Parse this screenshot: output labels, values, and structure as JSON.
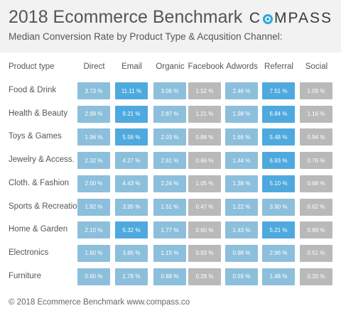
{
  "header": {
    "title": "2018 Ecommerce Benchmark",
    "subtitle": "Median Conversion Rate by Product Type & Acqusition Channel:",
    "logo_left": "C",
    "logo_right": "MPASS"
  },
  "footer": {
    "text": "© 2018 Ecommerce Benchmark www.compass.co"
  },
  "colors": {
    "dark_blue": "#4ea9de",
    "light_blue": "#8cbfdb",
    "grey": "#b9b9b9"
  },
  "chart_data": {
    "type": "heatmap",
    "title": "2018 Ecommerce Benchmark",
    "subtitle": "Median Conversion Rate by Product Type & Acqusition Channel:",
    "row_header": "Product type",
    "columns": [
      "Direct",
      "Email",
      "Organic",
      "Facebook",
      "Adwords",
      "Referral",
      "Social"
    ],
    "rows": [
      {
        "label": "Food & Drink",
        "values": [
          "3.73 %",
          "11.11 %",
          "3.06 %",
          "1.52 %",
          "2.46 %",
          "7.51 %",
          "1.09 %"
        ],
        "levels": [
          "light",
          "dark",
          "light",
          "grey",
          "light",
          "dark",
          "grey"
        ]
      },
      {
        "label": "Health & Beauty",
        "values": [
          "2.99 %",
          "9.21 %",
          "2.87 %",
          "1.21 %",
          "1.98 %",
          "6.84 %",
          "1.16 %"
        ],
        "levels": [
          "light",
          "dark",
          "light",
          "grey",
          "light",
          "dark",
          "grey"
        ]
      },
      {
        "label": "Toys & Games",
        "values": [
          "1.96 %",
          "5.56 %",
          "2.03 %",
          "0.88 %",
          "1.66 %",
          "5.48 %",
          "0.94 %"
        ],
        "levels": [
          "light",
          "dark",
          "light",
          "grey",
          "light",
          "dark",
          "grey"
        ]
      },
      {
        "label": "Jewelry & Access.",
        "values": [
          "2.32 %",
          "4.27 %",
          "2.61 %",
          "0.66 %",
          "1.44 %",
          "6.93 %",
          "0.76 %"
        ],
        "levels": [
          "light",
          "light",
          "light",
          "grey",
          "light",
          "dark",
          "grey"
        ]
      },
      {
        "label": "Cloth. & Fashion",
        "values": [
          "2.00 %",
          "4.43 %",
          "2.24 %",
          "1.05 %",
          "1.38 %",
          "5.10 %",
          "0.68 %"
        ],
        "levels": [
          "light",
          "light",
          "light",
          "grey",
          "light",
          "dark",
          "grey"
        ]
      },
      {
        "label": "Sports & Recreation",
        "values": [
          "1.92 %",
          "3.95 %",
          "1.51 %",
          "0.47 %",
          "1.22 %",
          "3.90 %",
          "0.62 %"
        ],
        "levels": [
          "light",
          "light",
          "light",
          "grey",
          "light",
          "light",
          "grey"
        ]
      },
      {
        "label": "Home & Garden",
        "values": [
          "2.10 %",
          "5.32 %",
          "1.77 %",
          "0.60 %",
          "1.43 %",
          "5.21 %",
          "0.69 %"
        ],
        "levels": [
          "light",
          "dark",
          "light",
          "grey",
          "light",
          "dark",
          "grey"
        ]
      },
      {
        "label": "Electronics",
        "values": [
          "1.60 %",
          "3.85 %",
          "1.15 %",
          "0.93 %",
          "0.98 %",
          "2.96 %",
          "0.51 %"
        ],
        "levels": [
          "light",
          "light",
          "light",
          "grey",
          "light",
          "light",
          "grey"
        ]
      },
      {
        "label": "Furniture",
        "values": [
          "0.90 %",
          "1.78 %",
          "0.88 %",
          "0.28 %",
          "0.59 %",
          "1.48 %",
          "0.20 %"
        ],
        "levels": [
          "light",
          "light",
          "light",
          "grey",
          "light",
          "light",
          "grey"
        ]
      }
    ]
  }
}
